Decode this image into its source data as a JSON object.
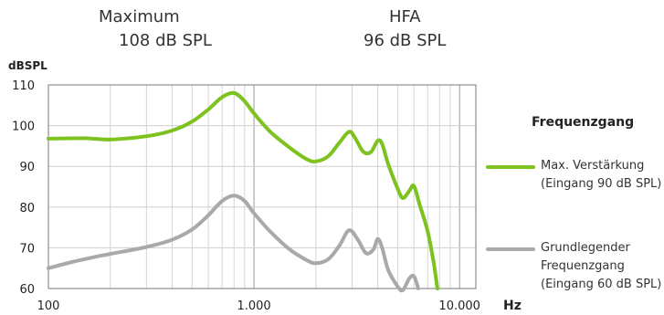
{
  "header": {
    "max_title": "Maximum",
    "max_value": "108 dB SPL",
    "hfa_title": "HFA",
    "hfa_value": "96 dB SPL"
  },
  "legend": {
    "title": "Frequenzgang",
    "items": [
      {
        "lines": [
          "Max. Verstärkung",
          "(Eingang 90 dB SPL)"
        ],
        "color": "#7dc21e"
      },
      {
        "lines": [
          "Grundlegender",
          "Frequenzgang",
          "(Eingang 60 dB SPL)"
        ],
        "color": "#a9a9a9"
      }
    ]
  },
  "chart_data": {
    "type": "line",
    "ylabel": "dBSPL",
    "xlabel": "Hz",
    "x_scale": "log",
    "xlim": [
      100,
      12000
    ],
    "ylim": [
      60,
      110
    ],
    "grid": true,
    "xticks": [
      {
        "value": 100,
        "label": "100"
      },
      {
        "value": 1000,
        "label": "1.000"
      },
      {
        "value": 10000,
        "label": "10.000"
      }
    ],
    "yticks": [
      60,
      70,
      80,
      90,
      100,
      110
    ],
    "series": [
      {
        "name": "Max. Verstärkung (Eingang 90 dB SPL)",
        "color": "#7dc21e",
        "points": [
          [
            100,
            96.8
          ],
          [
            150,
            96.9
          ],
          [
            200,
            96.6
          ],
          [
            300,
            97.4
          ],
          [
            400,
            98.8
          ],
          [
            500,
            101.0
          ],
          [
            600,
            104.0
          ],
          [
            700,
            107.0
          ],
          [
            800,
            108.0
          ],
          [
            900,
            106.0
          ],
          [
            1000,
            103.0
          ],
          [
            1200,
            98.5
          ],
          [
            1500,
            94.5
          ],
          [
            1800,
            91.8
          ],
          [
            2000,
            91.2
          ],
          [
            2300,
            92.5
          ],
          [
            2600,
            95.8
          ],
          [
            2900,
            98.5
          ],
          [
            3100,
            97.0
          ],
          [
            3400,
            93.6
          ],
          [
            3700,
            93.5
          ],
          [
            4000,
            96.3
          ],
          [
            4200,
            95.5
          ],
          [
            4500,
            90.5
          ],
          [
            5000,
            84.5
          ],
          [
            5300,
            82.2
          ],
          [
            5700,
            84.0
          ],
          [
            6000,
            85.2
          ],
          [
            6400,
            80.5
          ],
          [
            7000,
            74.0
          ],
          [
            7500,
            66.0
          ],
          [
            7800,
            60.0
          ]
        ]
      },
      {
        "name": "Grundlegender Frequenzgang (Eingang 60 dB SPL)",
        "color": "#a9a9a9",
        "points": [
          [
            100,
            65.0
          ],
          [
            130,
            66.5
          ],
          [
            170,
            67.8
          ],
          [
            200,
            68.5
          ],
          [
            300,
            70.2
          ],
          [
            400,
            72.0
          ],
          [
            500,
            74.5
          ],
          [
            600,
            78.0
          ],
          [
            700,
            81.5
          ],
          [
            800,
            82.8
          ],
          [
            900,
            81.5
          ],
          [
            1000,
            78.5
          ],
          [
            1200,
            74.0
          ],
          [
            1500,
            69.5
          ],
          [
            1800,
            67.0
          ],
          [
            2000,
            66.2
          ],
          [
            2300,
            67.2
          ],
          [
            2600,
            70.5
          ],
          [
            2900,
            74.3
          ],
          [
            3200,
            72.0
          ],
          [
            3500,
            68.7
          ],
          [
            3800,
            69.5
          ],
          [
            4000,
            72.2
          ],
          [
            4200,
            70.0
          ],
          [
            4500,
            64.5
          ],
          [
            5000,
            60.5
          ],
          [
            5300,
            59.6
          ],
          [
            5700,
            62.5
          ],
          [
            6000,
            63.0
          ],
          [
            6300,
            60.0
          ]
        ]
      }
    ]
  }
}
